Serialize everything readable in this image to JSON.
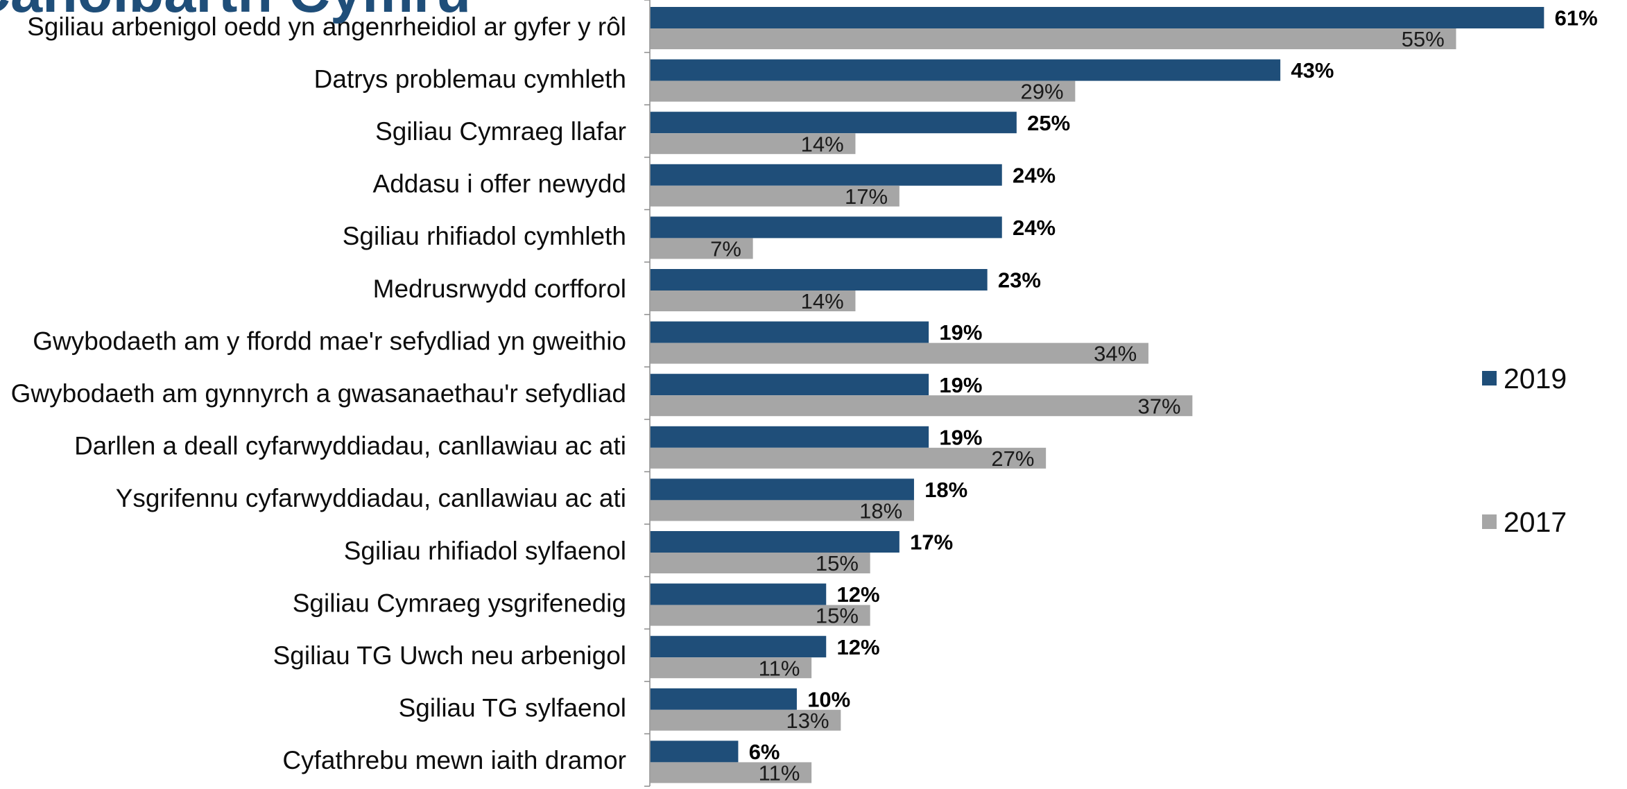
{
  "chart_data": {
    "type": "bar",
    "orientation": "horizontal",
    "title": "Canolbarth Cymru",
    "xlim": [
      0,
      66.7
    ],
    "grid": false,
    "legend": "right",
    "categories": [
      "Sgiliau arbenigol oedd yn angenrheidiol ar gyfer y rôl",
      "Datrys problemau cymhleth",
      "Sgiliau Cymraeg llafar",
      "Addasu i offer newydd",
      "Sgiliau rhifiadol cymhleth",
      "Medrusrwydd corfforol",
      "Gwybodaeth am y ffordd mae'r sefydliad yn gweithio",
      "Gwybodaeth am gynnyrch a gwasanaethau'r sefydliad",
      "Darllen a deall cyfarwyddiadau, canllawiau ac ati",
      "Ysgrifennu cyfarwyddiadau, canllawiau ac ati",
      "Sgiliau rhifiadol sylfaenol",
      "Sgiliau Cymraeg ysgrifenedig",
      "Sgiliau TG Uwch neu arbenigol",
      "Sgiliau TG sylfaenol",
      "Cyfathrebu mewn iaith dramor"
    ],
    "series": [
      {
        "name": "2019",
        "color": "#1f4e79",
        "values": [
          61,
          43,
          25,
          24,
          24,
          23,
          19,
          19,
          19,
          18,
          17,
          12,
          12,
          10,
          6
        ],
        "labels": [
          "61%",
          "43%",
          "25%",
          "24%",
          "24%",
          "23%",
          "19%",
          "19%",
          "19%",
          "18%",
          "17%",
          "12%",
          "12%",
          "10%",
          "6%"
        ]
      },
      {
        "name": "2017",
        "color": "#a6a6a6",
        "values": [
          55,
          29,
          14,
          17,
          7,
          14,
          34,
          37,
          27,
          18,
          15,
          15,
          11,
          13,
          11
        ],
        "labels": [
          "55%",
          "29%",
          "14%",
          "17%",
          "7%",
          "14%",
          "34%",
          "37%",
          "27%",
          "18%",
          "15%",
          "15%",
          "11%",
          "13%",
          "11%"
        ]
      }
    ]
  }
}
